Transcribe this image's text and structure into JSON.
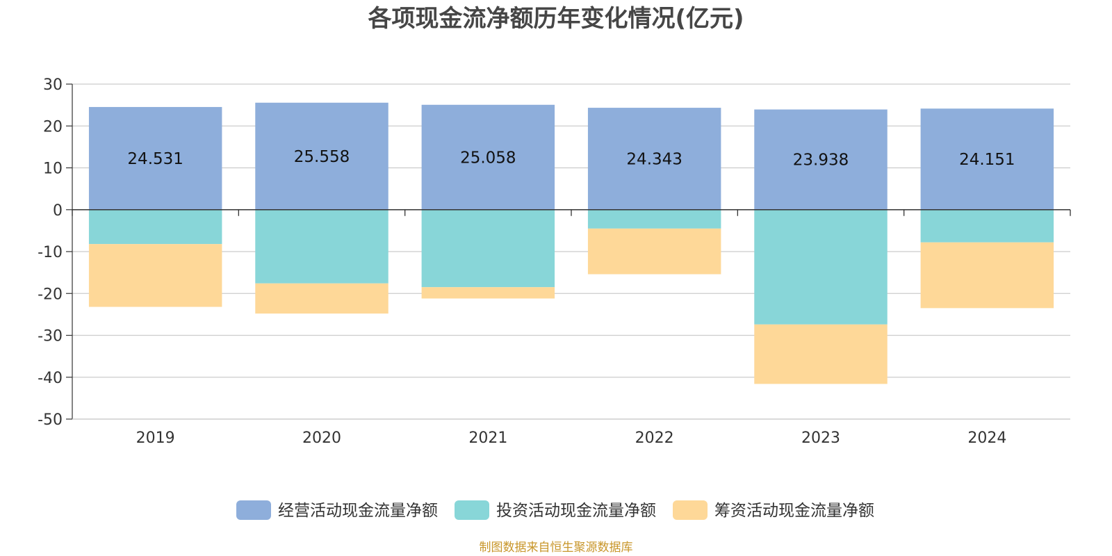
{
  "chart_data": {
    "type": "bar",
    "stacked": true,
    "title": "各项现金流净额历年变化情况(亿元)",
    "categories": [
      "2019",
      "2020",
      "2021",
      "2022",
      "2023",
      "2024"
    ],
    "ylim": [
      -50,
      30
    ],
    "yticks": [
      30,
      20,
      10,
      0,
      -10,
      -20,
      -30,
      -40,
      -50
    ],
    "grid": true,
    "legend_position": "bottom",
    "series": [
      {
        "name": "经营活动现金流量净额",
        "color": "#8eaedb",
        "values": [
          24.531,
          25.558,
          25.058,
          24.343,
          23.938,
          24.151
        ],
        "show_labels": true
      },
      {
        "name": "投资活动现金流量净额",
        "color": "#88d6d8",
        "values": [
          -8.2,
          -17.6,
          -18.5,
          -4.5,
          -27.4,
          -7.8
        ],
        "show_labels": false
      },
      {
        "name": "筹资活动现金流量净额",
        "color": "#fed898",
        "values": [
          -15.0,
          -7.2,
          -2.7,
          -10.9,
          -14.2,
          -15.7
        ],
        "show_labels": false
      }
    ],
    "source": "制图数据来自恒生聚源数据库"
  }
}
